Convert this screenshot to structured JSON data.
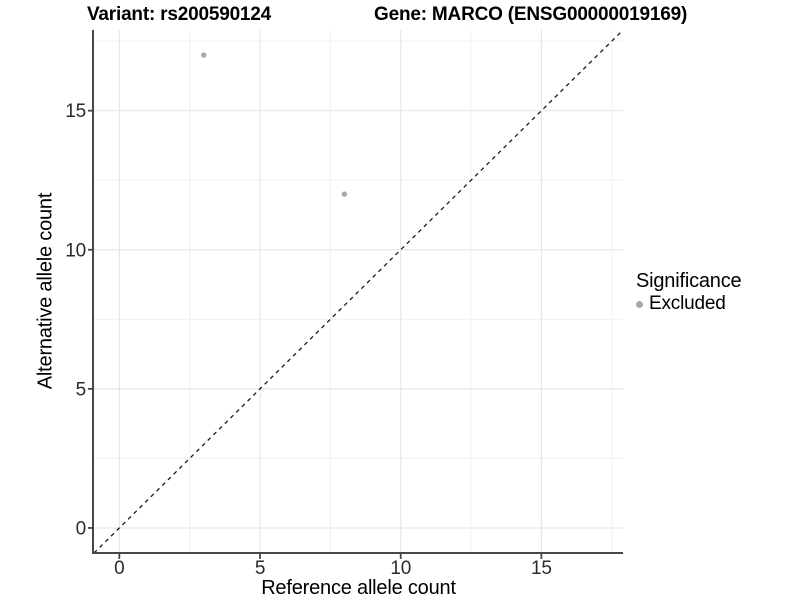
{
  "header": {
    "variant_title": "Variant: rs200590124",
    "gene_title": "Gene: MARCO (ENSG00000019169)"
  },
  "legend": {
    "title": "Significance",
    "items": [
      {
        "label": "Excluded",
        "color": "#a8a8a8"
      }
    ]
  },
  "chart_data": {
    "type": "scatter",
    "xlabel": "Reference allele count",
    "ylabel": "Alternative allele count",
    "xlim": [
      -0.9,
      17.9
    ],
    "ylim": [
      -0.9,
      17.9
    ],
    "x_ticks": [
      0,
      5,
      10,
      15
    ],
    "y_ticks": [
      0,
      5,
      10,
      15
    ],
    "x_minor_breaks": [
      2.5,
      7.5,
      12.5,
      17.5
    ],
    "y_minor_breaks": [
      2.5,
      7.5,
      12.5,
      17.5
    ],
    "grid": true,
    "legend_position": "right",
    "series": [
      {
        "name": "Excluded",
        "points": [
          {
            "x": 3,
            "y": 17
          },
          {
            "x": 8,
            "y": 12
          }
        ]
      }
    ],
    "reference_line": {
      "type": "identity",
      "slope": 1,
      "intercept": 0,
      "style": "dashed"
    },
    "colors": {
      "excluded_point": "#a8a8a8",
      "grid_major": "#e7e7e7",
      "grid_minor": "#f0f0f0",
      "axis_line": "#474747",
      "tick_text": "#2b2b2b",
      "dashed_line": "#1a1a1a",
      "background": "#ffffff"
    }
  }
}
